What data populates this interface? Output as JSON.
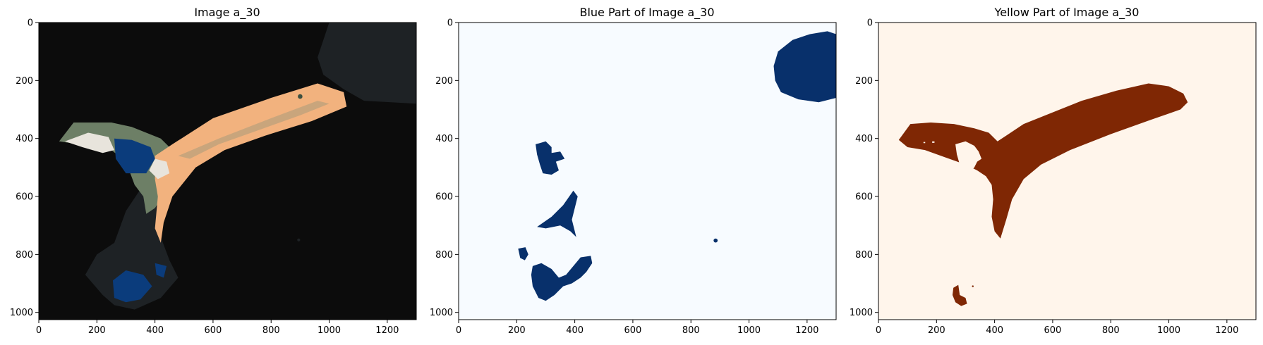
{
  "chart_data": [
    {
      "type": "image",
      "title": "Image a_30",
      "xlim": [
        0,
        1300
      ],
      "ylim": [
        1025,
        0
      ],
      "xticks": [
        0,
        200,
        400,
        600,
        800,
        1000,
        1200
      ],
      "yticks": [
        0,
        200,
        400,
        600,
        800,
        1000
      ],
      "background_color": "#0c0c0c",
      "colors": {
        "dark_gray": "#1e2225",
        "olive": "#6d7f66",
        "peach": "#f2b27e",
        "tan": "#c9a57c",
        "white": "#e8e4dc",
        "blue": "#0b3c7c"
      }
    },
    {
      "type": "image",
      "title": "Blue Part of Image a_30",
      "xlim": [
        0,
        1300
      ],
      "ylim": [
        1025,
        0
      ],
      "xticks": [
        0,
        200,
        400,
        600,
        800,
        1000,
        1200
      ],
      "yticks": [
        0,
        200,
        400,
        600,
        800,
        1000
      ],
      "background_color": "#f7fbff",
      "foreground_color": "#08306b"
    },
    {
      "type": "image",
      "title": "Yellow Part of Image a_30",
      "xlim": [
        0,
        1300
      ],
      "ylim": [
        1025,
        0
      ],
      "xticks": [
        0,
        200,
        400,
        600,
        800,
        1000,
        1200
      ],
      "yticks": [
        0,
        200,
        400,
        600,
        800,
        1000
      ],
      "background_color": "#fff5eb",
      "foreground_color": "#7f2704"
    }
  ]
}
